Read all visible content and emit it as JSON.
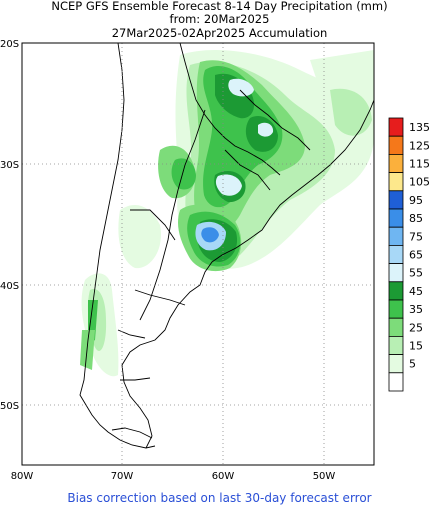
{
  "title": {
    "line1": "NCEP GFS Ensemble Forecast 8-14 Day Precipitation (mm)",
    "line2": "from: 20Mar2025",
    "line3": "27Mar2025-02Apr2025 Accumulation"
  },
  "axes": {
    "lat_labels": [
      "20S",
      "30S",
      "40S",
      "50S"
    ],
    "lon_labels": [
      "80W",
      "70W",
      "60W",
      "50W"
    ]
  },
  "legend": {
    "levels": [
      {
        "label": "135",
        "color": "#e61d1d"
      },
      {
        "label": "125",
        "color": "#f5781a"
      },
      {
        "label": "115",
        "color": "#fbb03c"
      },
      {
        "label": "105",
        "color": "#fde88c"
      },
      {
        "label": "95",
        "color": "#1f5fd6"
      },
      {
        "label": "85",
        "color": "#3a8ee8"
      },
      {
        "label": "75",
        "color": "#6fb6f2"
      },
      {
        "label": "65",
        "color": "#a8d8f7"
      },
      {
        "label": "55",
        "color": "#dcf3fa"
      },
      {
        "label": "45",
        "color": "#1c9a34"
      },
      {
        "label": "35",
        "color": "#3ec24c"
      },
      {
        "label": "25",
        "color": "#7ddc7a"
      },
      {
        "label": "15",
        "color": "#b8efb4"
      },
      {
        "label": "5",
        "color": "#e4fbe1"
      },
      {
        "label": "",
        "color": "#ffffff"
      }
    ]
  },
  "footer": "Bias correction based on last 30-day forecast error"
}
